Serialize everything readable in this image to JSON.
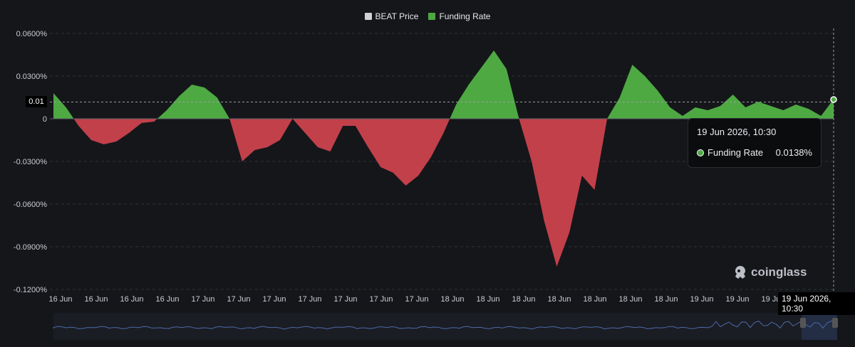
{
  "legend": {
    "price_label": "BEAT Price",
    "price_color": "#d0d2d6",
    "funding_label": "Funding Rate",
    "funding_color": "#4ea943"
  },
  "colors": {
    "positive": "#4ea943",
    "negative": "#c2404a",
    "grid": "#2f3137",
    "background": "#15161a",
    "navigator_line": "#4a6aa8"
  },
  "tooltip": {
    "title": "19 Jun 2026, 10:30",
    "series": "Funding Rate",
    "value": "0.0138%"
  },
  "cursor": {
    "x_label": "19 Jun 2026, 10:30",
    "y_label": "0.01"
  },
  "watermark": {
    "text": "coinglass",
    "icon": "coinglass-logo-icon"
  },
  "chart_data": {
    "type": "area",
    "title": "",
    "y_axis": {
      "min": -0.12,
      "max": 0.06,
      "unit": "%",
      "ticks": [
        "0.0600%",
        "0.0300%",
        "0",
        "-0.0300%",
        "-0.0600%",
        "-0.0900%",
        "-0.1200%"
      ],
      "tick_values": [
        0.06,
        0.03,
        0,
        -0.03,
        -0.06,
        -0.09,
        -0.12
      ]
    },
    "x_ticks": [
      "16 Jun",
      "16 Jun",
      "16 Jun",
      "16 Jun",
      "17 Jun",
      "17 Jun",
      "17 Jun",
      "17 Jun",
      "17 Jun",
      "17 Jun",
      "17 Jun",
      "18 Jun",
      "18 Jun",
      "18 Jun",
      "18 Jun",
      "18 Jun",
      "18 Jun",
      "18 Jun",
      "19 Jun",
      "19 Jun",
      "19 Jun",
      "19 Jun"
    ],
    "grid": true,
    "legend_position": "top-center",
    "series": [
      {
        "name": "Funding Rate",
        "values": [
          0.018,
          0.008,
          -0.005,
          -0.015,
          -0.018,
          -0.016,
          -0.01,
          -0.003,
          -0.002,
          0.006,
          0.016,
          0.024,
          0.022,
          0.015,
          0,
          -0.03,
          -0.022,
          -0.02,
          -0.015,
          0,
          -0.01,
          -0.02,
          -0.023,
          -0.005,
          -0.005,
          -0.02,
          -0.034,
          -0.038,
          -0.047,
          -0.04,
          -0.027,
          -0.01,
          0.01,
          0.024,
          0.036,
          0.048,
          0.035,
          0,
          -0.03,
          -0.072,
          -0.104,
          -0.08,
          -0.04,
          -0.05,
          0,
          0.015,
          0.038,
          0.03,
          0.02,
          0.008,
          0.002,
          0.008,
          0.006,
          0.009,
          0.017,
          0.008,
          0.012,
          0.009,
          0.006,
          0.01,
          0.007,
          0.002,
          0.0138
        ]
      }
    ]
  }
}
